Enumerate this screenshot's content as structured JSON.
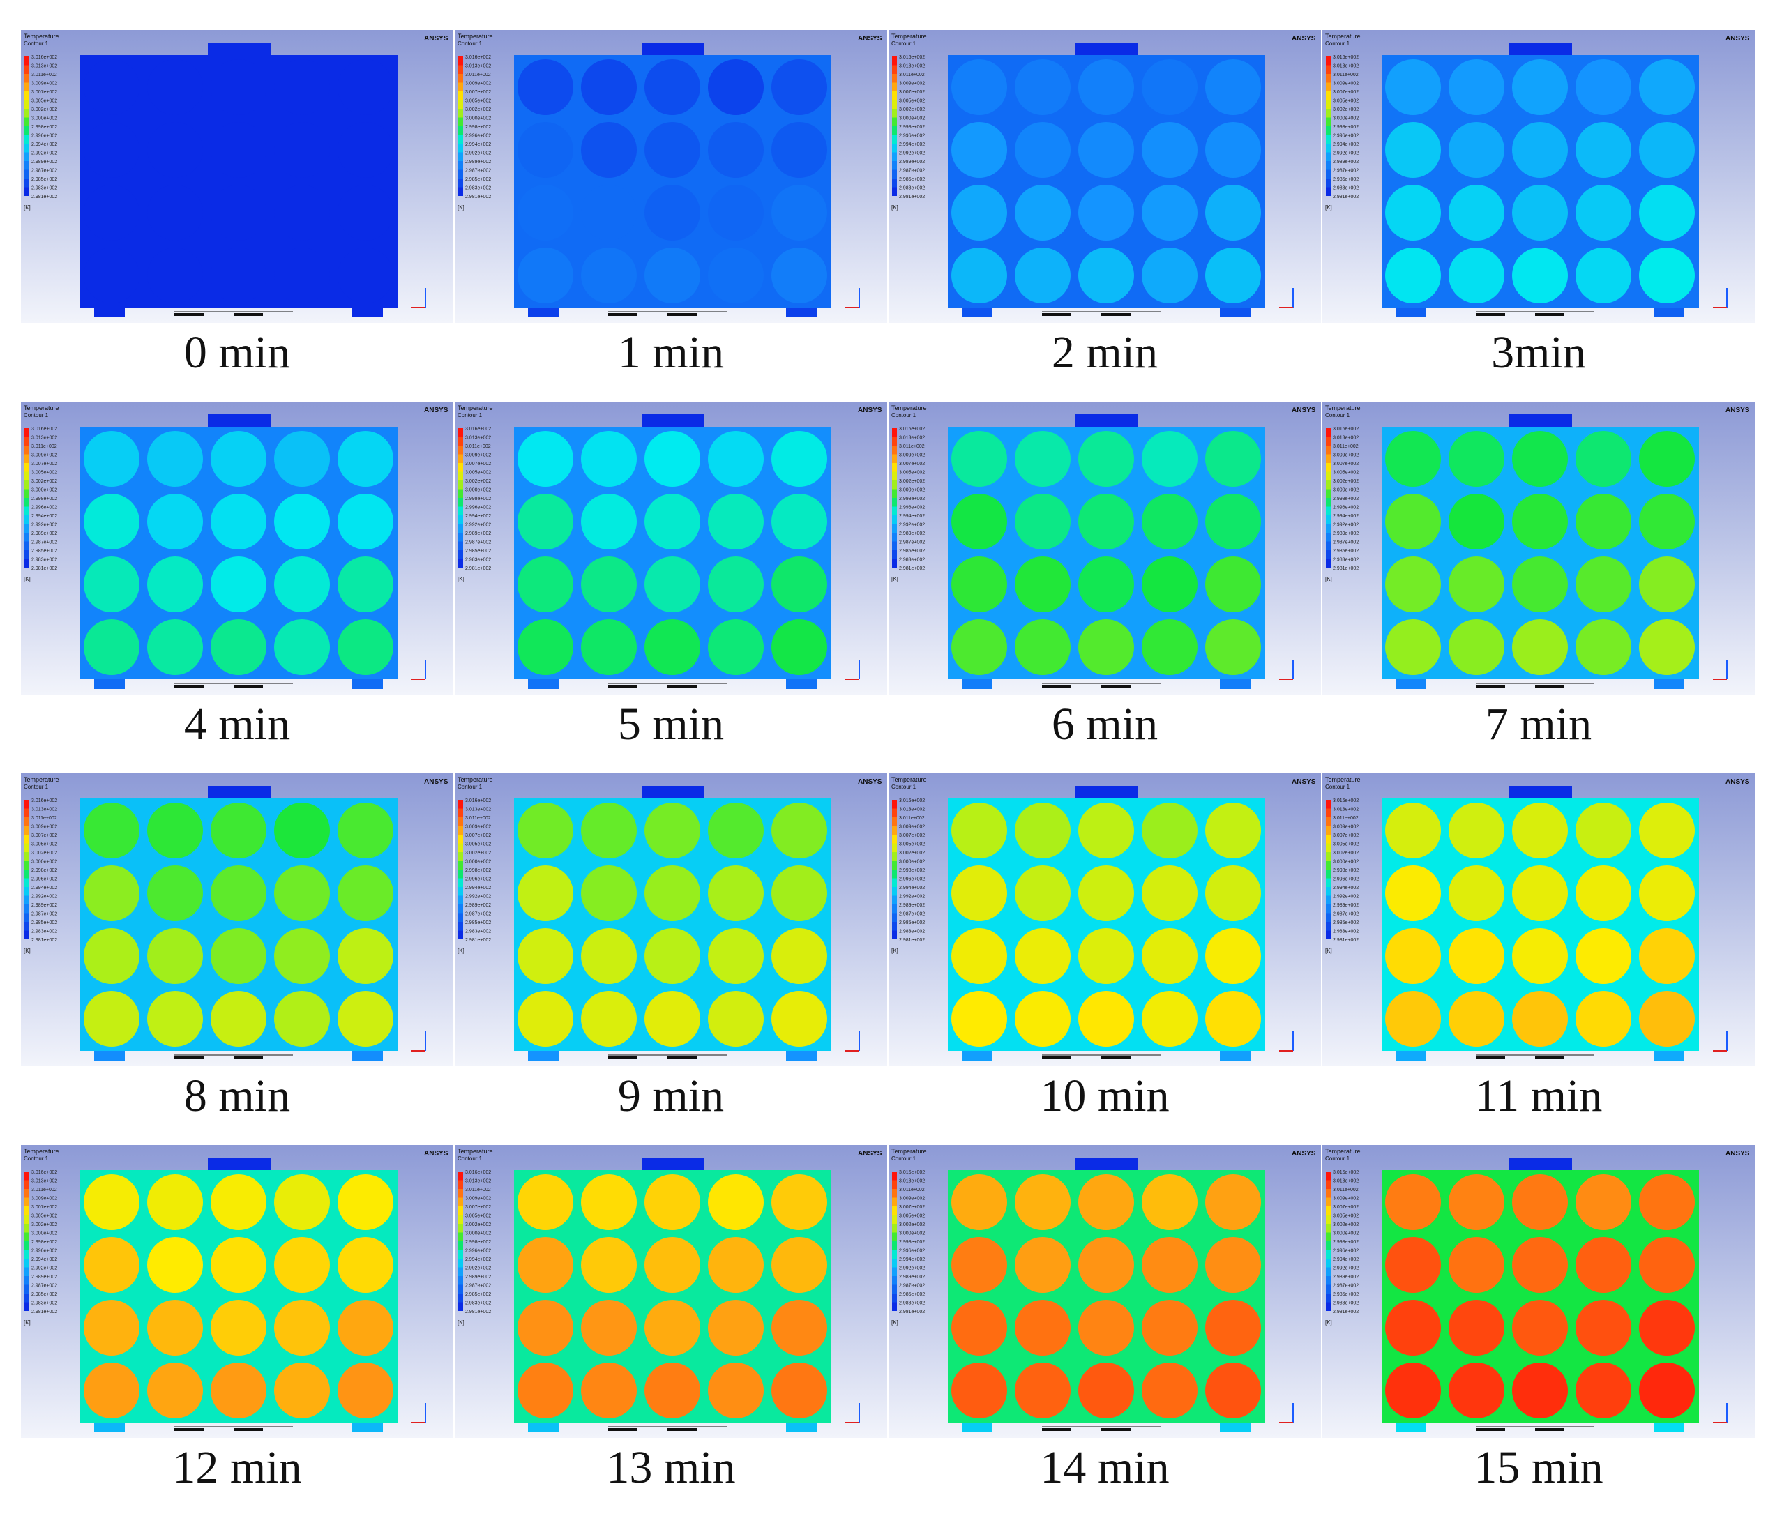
{
  "header": {
    "title": "Temperature",
    "subtitle": "Contour 1"
  },
  "brand": "ANSYS",
  "legend_unit": "[K]",
  "legend_ticks": [
    "3.016e+002",
    "3.013e+002",
    "3.011e+002",
    "3.009e+002",
    "3.007e+002",
    "3.005e+002",
    "3.002e+002",
    "3.000e+002",
    "2.998e+002",
    "2.996e+002",
    "2.994e+002",
    "2.992e+002",
    "2.989e+002",
    "2.987e+002",
    "2.985e+002",
    "2.983e+002",
    "2.981e+002"
  ],
  "colors": {
    "cold": "#0a2be6",
    "hot": "#ff1a0a"
  },
  "frames": [
    {
      "label": "0 min",
      "level": 0.0,
      "cells": []
    },
    {
      "label": "1 min",
      "level": 0.12
    },
    {
      "label": "2 min",
      "level": 0.24
    },
    {
      "label": "3min",
      "level": 0.31
    },
    {
      "label": "4 min",
      "level": 0.38
    },
    {
      "label": "5 min",
      "level": 0.42
    },
    {
      "label": "6 min",
      "level": 0.48
    },
    {
      "label": "7 min",
      "level": 0.53
    },
    {
      "label": "8 min",
      "level": 0.57
    },
    {
      "label": "9 min",
      "level": 0.61
    },
    {
      "label": "10 min",
      "level": 0.66
    },
    {
      "label": "11 min",
      "level": 0.7
    },
    {
      "label": "12 min",
      "level": 0.75
    },
    {
      "label": "13 min",
      "level": 0.79
    },
    {
      "label": "14 min",
      "level": 0.84
    },
    {
      "label": "15 min",
      "level": 0.9
    }
  ]
}
